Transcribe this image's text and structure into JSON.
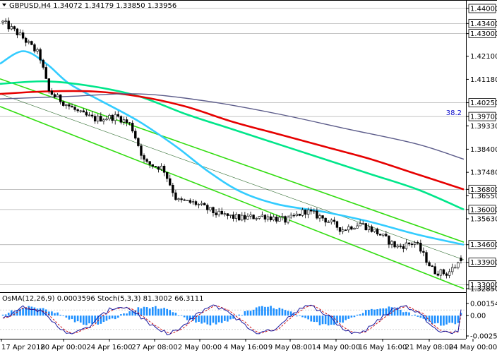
{
  "symbol_header": "GBPUSD,H4  1.34072 1.34179 1.33850 1.33956",
  "marker_value": "38.2",
  "price_levels": [
    {
      "label": "1.44000",
      "value": 1.44,
      "boxed": true
    },
    {
      "label": "1.43400",
      "value": 1.434,
      "boxed": true
    },
    {
      "label": "1.43000",
      "value": 1.43,
      "boxed": true
    },
    {
      "label": "1.42100",
      "value": 1.421,
      "boxed": false
    },
    {
      "label": "1.41180",
      "value": 1.4118,
      "boxed": false
    },
    {
      "label": "1.40250",
      "value": 1.4025,
      "boxed": true
    },
    {
      "label": "1.39700",
      "value": 1.397,
      "boxed": true
    },
    {
      "label": "1.39330",
      "value": 1.3933,
      "boxed": false
    },
    {
      "label": "1.38400",
      "value": 1.384,
      "boxed": false
    },
    {
      "label": "1.37480",
      "value": 1.3748,
      "boxed": false
    },
    {
      "label": "1.36800",
      "value": 1.368,
      "boxed": true
    },
    {
      "label": "1.36550",
      "value": 1.3655,
      "boxed": false
    },
    {
      "label": "1.36000",
      "value": 1.36,
      "boxed": true
    },
    {
      "label": "1.35630",
      "value": 1.3563,
      "boxed": false
    },
    {
      "label": "1.34600",
      "value": 1.346,
      "boxed": true
    },
    {
      "label": "1.33900",
      "value": 1.339,
      "boxed": true
    },
    {
      "label": "1.33000",
      "value": 1.33,
      "boxed": true
    },
    {
      "label": "1.32850",
      "value": 1.3285,
      "boxed": false
    }
  ],
  "indicator_header": "OsMA(12,26,9) 0.0003596  Stoch(5,3,3) 81.3002 66.3111",
  "indicator_axis_labels": [
    "0.00154",
    "0.00",
    "-0.00258"
  ],
  "time_labels": [
    "17 Apr 2018",
    "20 Apr 00:00",
    "24 Apr 16:00",
    "27 Apr 08:00",
    "2 May 00:00",
    "4 May 16:00",
    "9 May 08:00",
    "14 May 00:00",
    "16 May 16:00",
    "21 May 08:00",
    "24 May 00:00"
  ],
  "colors": {
    "background": "#ffffff",
    "candle": "#000000",
    "ema_fast": "#33ccff",
    "ema_mid": "#00e68a",
    "ema_slow": "#e60000",
    "ema_slowest": "#5c5c8a",
    "channel": "#33dd11",
    "histogram": "#1e90ff",
    "stoch_main": "#1a1aa0",
    "stoch_signal": "#cc0000"
  },
  "chart_data": {
    "type": "candlestick",
    "symbol": "GBPUSD",
    "timeframe": "H4",
    "last_ohlc": {
      "open": 1.34072,
      "high": 1.34179,
      "low": 1.3385,
      "close": 1.33956
    },
    "x_range": [
      "17 Apr 2018",
      "24 May 00:00"
    ],
    "ylim": [
      1.3285,
      1.44
    ],
    "trend_waypoints": [
      {
        "t": 0,
        "p": 1.4345
      },
      {
        "t": 0.04,
        "p": 1.429
      },
      {
        "t": 0.08,
        "p": 1.4215
      },
      {
        "t": 0.1,
        "p": 1.407
      },
      {
        "t": 0.13,
        "p": 1.403
      },
      {
        "t": 0.17,
        "p": 1.398
      },
      {
        "t": 0.2,
        "p": 1.396
      },
      {
        "t": 0.25,
        "p": 1.397
      },
      {
        "t": 0.28,
        "p": 1.3935
      },
      {
        "t": 0.31,
        "p": 1.3785
      },
      {
        "t": 0.35,
        "p": 1.3765
      },
      {
        "t": 0.38,
        "p": 1.3635
      },
      {
        "t": 0.42,
        "p": 1.3625
      },
      {
        "t": 0.47,
        "p": 1.358
      },
      {
        "t": 0.52,
        "p": 1.3565
      },
      {
        "t": 0.57,
        "p": 1.3575
      },
      {
        "t": 0.62,
        "p": 1.3555
      },
      {
        "t": 0.66,
        "p": 1.3595
      },
      {
        "t": 0.7,
        "p": 1.3565
      },
      {
        "t": 0.74,
        "p": 1.352
      },
      {
        "t": 0.78,
        "p": 1.3545
      },
      {
        "t": 0.82,
        "p": 1.3505
      },
      {
        "t": 0.86,
        "p": 1.345
      },
      {
        "t": 0.9,
        "p": 1.347
      },
      {
        "t": 0.94,
        "p": 1.3355
      },
      {
        "t": 0.97,
        "p": 1.3345
      },
      {
        "t": 1.0,
        "p": 1.3396
      }
    ],
    "moving_averages": [
      {
        "color": "#33ccff",
        "points": [
          [
            0.0,
            1.418
          ],
          [
            0.05,
            1.423
          ],
          [
            0.1,
            1.418
          ],
          [
            0.15,
            1.41
          ],
          [
            0.22,
            1.403
          ],
          [
            0.3,
            1.395
          ],
          [
            0.38,
            1.385
          ],
          [
            0.45,
            1.375
          ],
          [
            0.52,
            1.367
          ],
          [
            0.6,
            1.362
          ],
          [
            0.7,
            1.359
          ],
          [
            0.8,
            1.355
          ],
          [
            0.9,
            1.35
          ],
          [
            1.0,
            1.346
          ]
        ]
      },
      {
        "color": "#00e68a",
        "points": [
          [
            0.0,
            1.41
          ],
          [
            0.1,
            1.411
          ],
          [
            0.2,
            1.409
          ],
          [
            0.3,
            1.405
          ],
          [
            0.4,
            1.398
          ],
          [
            0.5,
            1.392
          ],
          [
            0.6,
            1.386
          ],
          [
            0.7,
            1.38
          ],
          [
            0.8,
            1.374
          ],
          [
            0.9,
            1.368
          ],
          [
            1.0,
            1.36
          ]
        ]
      },
      {
        "color": "#e60000",
        "points": [
          [
            0.0,
            1.406
          ],
          [
            0.1,
            1.407
          ],
          [
            0.2,
            1.407
          ],
          [
            0.3,
            1.405
          ],
          [
            0.4,
            1.401
          ],
          [
            0.5,
            1.395
          ],
          [
            0.6,
            1.39
          ],
          [
            0.7,
            1.385
          ],
          [
            0.8,
            1.38
          ],
          [
            0.9,
            1.374
          ],
          [
            1.0,
            1.368
          ]
        ]
      },
      {
        "color": "#5c5c8a",
        "points": [
          [
            0.0,
            1.404
          ],
          [
            0.15,
            1.405
          ],
          [
            0.3,
            1.406
          ],
          [
            0.45,
            1.403
          ],
          [
            0.6,
            1.398
          ],
          [
            0.75,
            1.392
          ],
          [
            0.9,
            1.386
          ],
          [
            1.0,
            1.38
          ]
        ]
      }
    ],
    "channel_lines": [
      {
        "from": [
          0.0,
          1.412
        ],
        "to": [
          1.0,
          1.347
        ]
      },
      {
        "from": [
          0.0,
          1.401
        ],
        "to": [
          1.0,
          1.3285
        ]
      },
      {
        "from": [
          0.0,
          1.406
        ],
        "to": [
          1.0,
          1.34
        ],
        "thin": true
      }
    ],
    "horizontal_levels": [
      1.44,
      1.434,
      1.43,
      1.4025,
      1.397,
      1.368,
      1.36,
      1.346,
      1.339,
      1.33
    ],
    "indicator": {
      "osma_range": [
        -0.00258,
        0.00154
      ],
      "stoch_range": [
        0,
        100
      ],
      "last_osma": 0.0003596,
      "last_stoch_main": 81.3002,
      "last_stoch_signal": 66.3111
    }
  }
}
